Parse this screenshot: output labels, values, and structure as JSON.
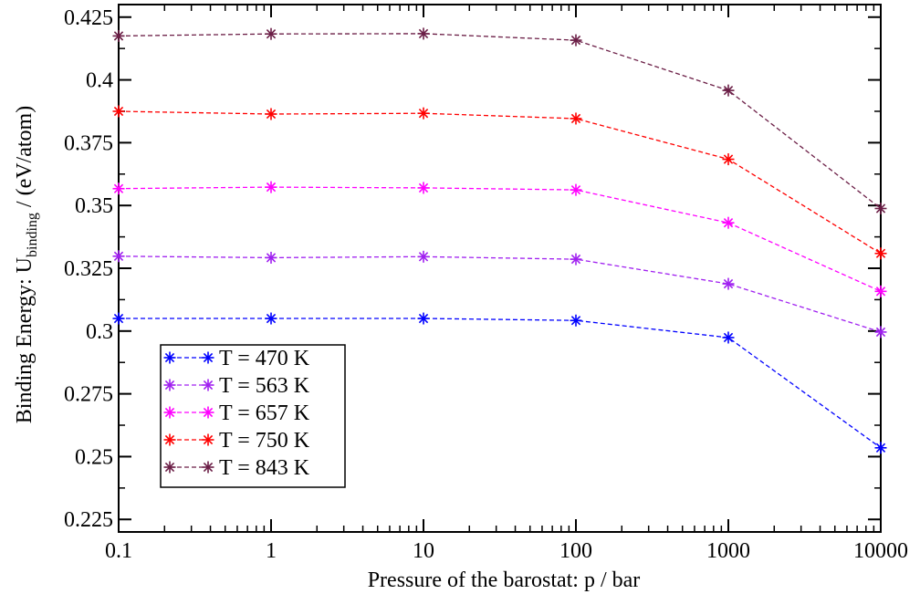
{
  "chart_data": {
    "type": "line",
    "title": "",
    "xlabel": "Pressure of the barostat: p / bar",
    "ylabel": {
      "prefix": "Binding Energy: U",
      "subscript": "binding",
      "suffix": " / (eV/atom)"
    },
    "xscale": "log",
    "xlim": [
      0.1,
      10000
    ],
    "ylim": [
      0.22,
      0.43
    ],
    "x": [
      0.1,
      1,
      10,
      100,
      1000,
      10000
    ],
    "x_tick_labels": [
      "0.1",
      "1",
      "10",
      "100",
      "1000",
      "10000"
    ],
    "y_ticks": [
      0.225,
      0.25,
      0.275,
      0.3,
      0.325,
      0.35,
      0.375,
      0.4,
      0.425
    ],
    "y_tick_labels": [
      "0.225",
      "0.25",
      "0.275",
      "0.3",
      "0.325",
      "0.35",
      "0.375",
      "0.4",
      "0.425"
    ],
    "grid": false,
    "legend_position": "bottom-left",
    "marker": "asterisk",
    "line_style": "dashed",
    "series": [
      {
        "name": "T = 470 K",
        "color": "#0000ff",
        "values": [
          0.305,
          0.305,
          0.305,
          0.3042,
          0.2974,
          0.2535
        ]
      },
      {
        "name": "T = 563 K",
        "color": "#a020f0",
        "values": [
          0.3298,
          0.3292,
          0.3296,
          0.3286,
          0.3188,
          0.2996
        ]
      },
      {
        "name": "T = 657 K",
        "color": "#ff00ff",
        "values": [
          0.3567,
          0.3573,
          0.357,
          0.3562,
          0.3431,
          0.3158
        ]
      },
      {
        "name": "T = 750 K",
        "color": "#ff0000",
        "values": [
          0.3875,
          0.3864,
          0.3867,
          0.3846,
          0.3684,
          0.3309
        ]
      },
      {
        "name": "T = 843 K",
        "color": "#6b1e46",
        "values": [
          0.4175,
          0.4183,
          0.4184,
          0.4158,
          0.3958,
          0.3488
        ]
      }
    ]
  }
}
